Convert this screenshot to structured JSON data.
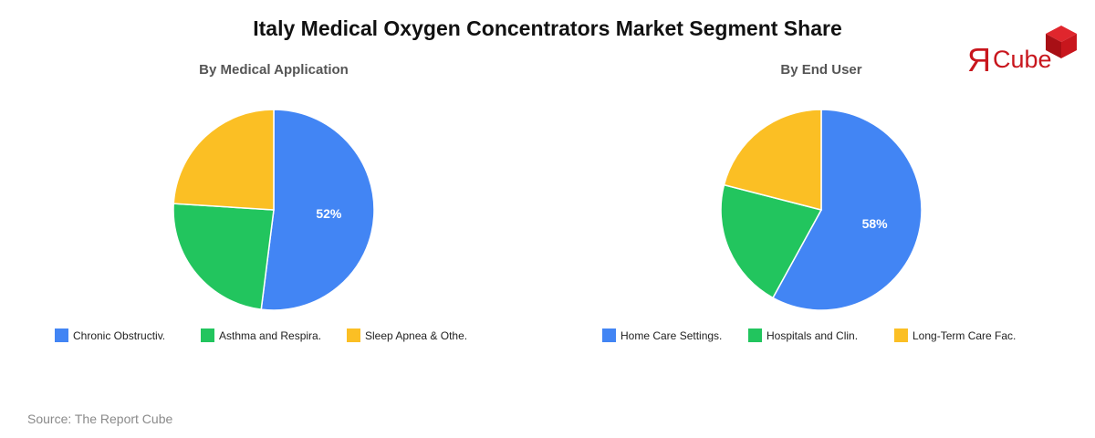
{
  "title": "Italy Medical Oxygen Concentrators Market Segment Share",
  "source": "Source: The Report Cube",
  "logo": {
    "mark": "Я",
    "text": "Cube",
    "icon": "cube-icon",
    "color": "#c8161d"
  },
  "chart_data": [
    {
      "type": "pie",
      "title": "By Medical Application",
      "labels": [
        "Chronic Obstructiv.",
        "Asthma and Respira.",
        "Sleep Apnea & Othe."
      ],
      "values": [
        52,
        24,
        24
      ],
      "value_labels": [
        "52%",
        "",
        ""
      ],
      "colors": [
        "#4285f4",
        "#22c55e",
        "#fbbf24"
      ],
      "legend_position": "bottom"
    },
    {
      "type": "pie",
      "title": "By End User",
      "labels": [
        "Home Care Settings.",
        "Hospitals and Clin.",
        "Long-Term Care Fac."
      ],
      "values": [
        58,
        21,
        21
      ],
      "value_labels": [
        "58%",
        "",
        ""
      ],
      "colors": [
        "#4285f4",
        "#22c55e",
        "#fbbf24"
      ],
      "legend_position": "bottom"
    }
  ]
}
